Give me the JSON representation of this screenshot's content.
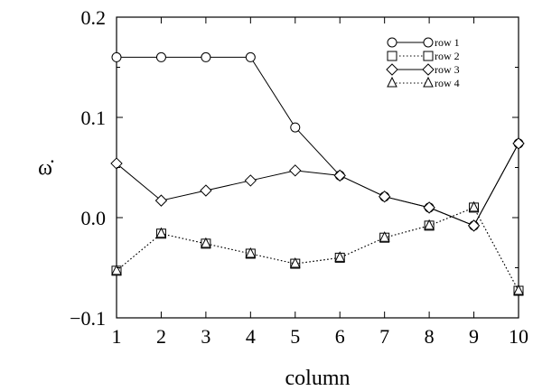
{
  "chart_data": {
    "type": "line",
    "title": "",
    "xlabel": "column",
    "ylabel": "ω̇",
    "x": [
      1,
      2,
      3,
      4,
      5,
      6,
      7,
      8,
      9,
      10
    ],
    "xlim": [
      1,
      10
    ],
    "ylim": [
      -0.1,
      0.2
    ],
    "xticks": [
      "1",
      "2",
      "3",
      "4",
      "5",
      "6",
      "7",
      "8",
      "9",
      "10"
    ],
    "yticks": [
      {
        "value": 0.2,
        "label": "0.2"
      },
      {
        "value": 0.1,
        "label": "0.1"
      },
      {
        "value": 0.0,
        "label": "0.0"
      },
      {
        "value": -0.1,
        "label": "−0.1"
      }
    ],
    "grid": false,
    "legend_position": "top-right",
    "series": [
      {
        "name": "row 1",
        "marker": "circle",
        "line": "solid",
        "values": [
          0.16,
          0.16,
          0.16,
          0.16,
          0.09,
          0.042,
          0.021,
          0.01,
          -0.008,
          0.074
        ]
      },
      {
        "name": "row 2",
        "marker": "square",
        "line": "dotted",
        "values": [
          -0.053,
          -0.016,
          -0.026,
          -0.036,
          -0.046,
          -0.04,
          -0.02,
          -0.008,
          0.01,
          -0.073
        ]
      },
      {
        "name": "row 3",
        "marker": "diamond",
        "line": "solid",
        "values": [
          0.054,
          0.017,
          0.027,
          0.037,
          0.047,
          0.042,
          0.021,
          0.01,
          -0.008,
          0.074
        ]
      },
      {
        "name": "row 4",
        "marker": "triangle",
        "line": "dotted",
        "values": [
          -0.053,
          -0.016,
          -0.026,
          -0.036,
          -0.046,
          -0.04,
          -0.02,
          -0.008,
          0.01,
          -0.073
        ]
      }
    ]
  }
}
